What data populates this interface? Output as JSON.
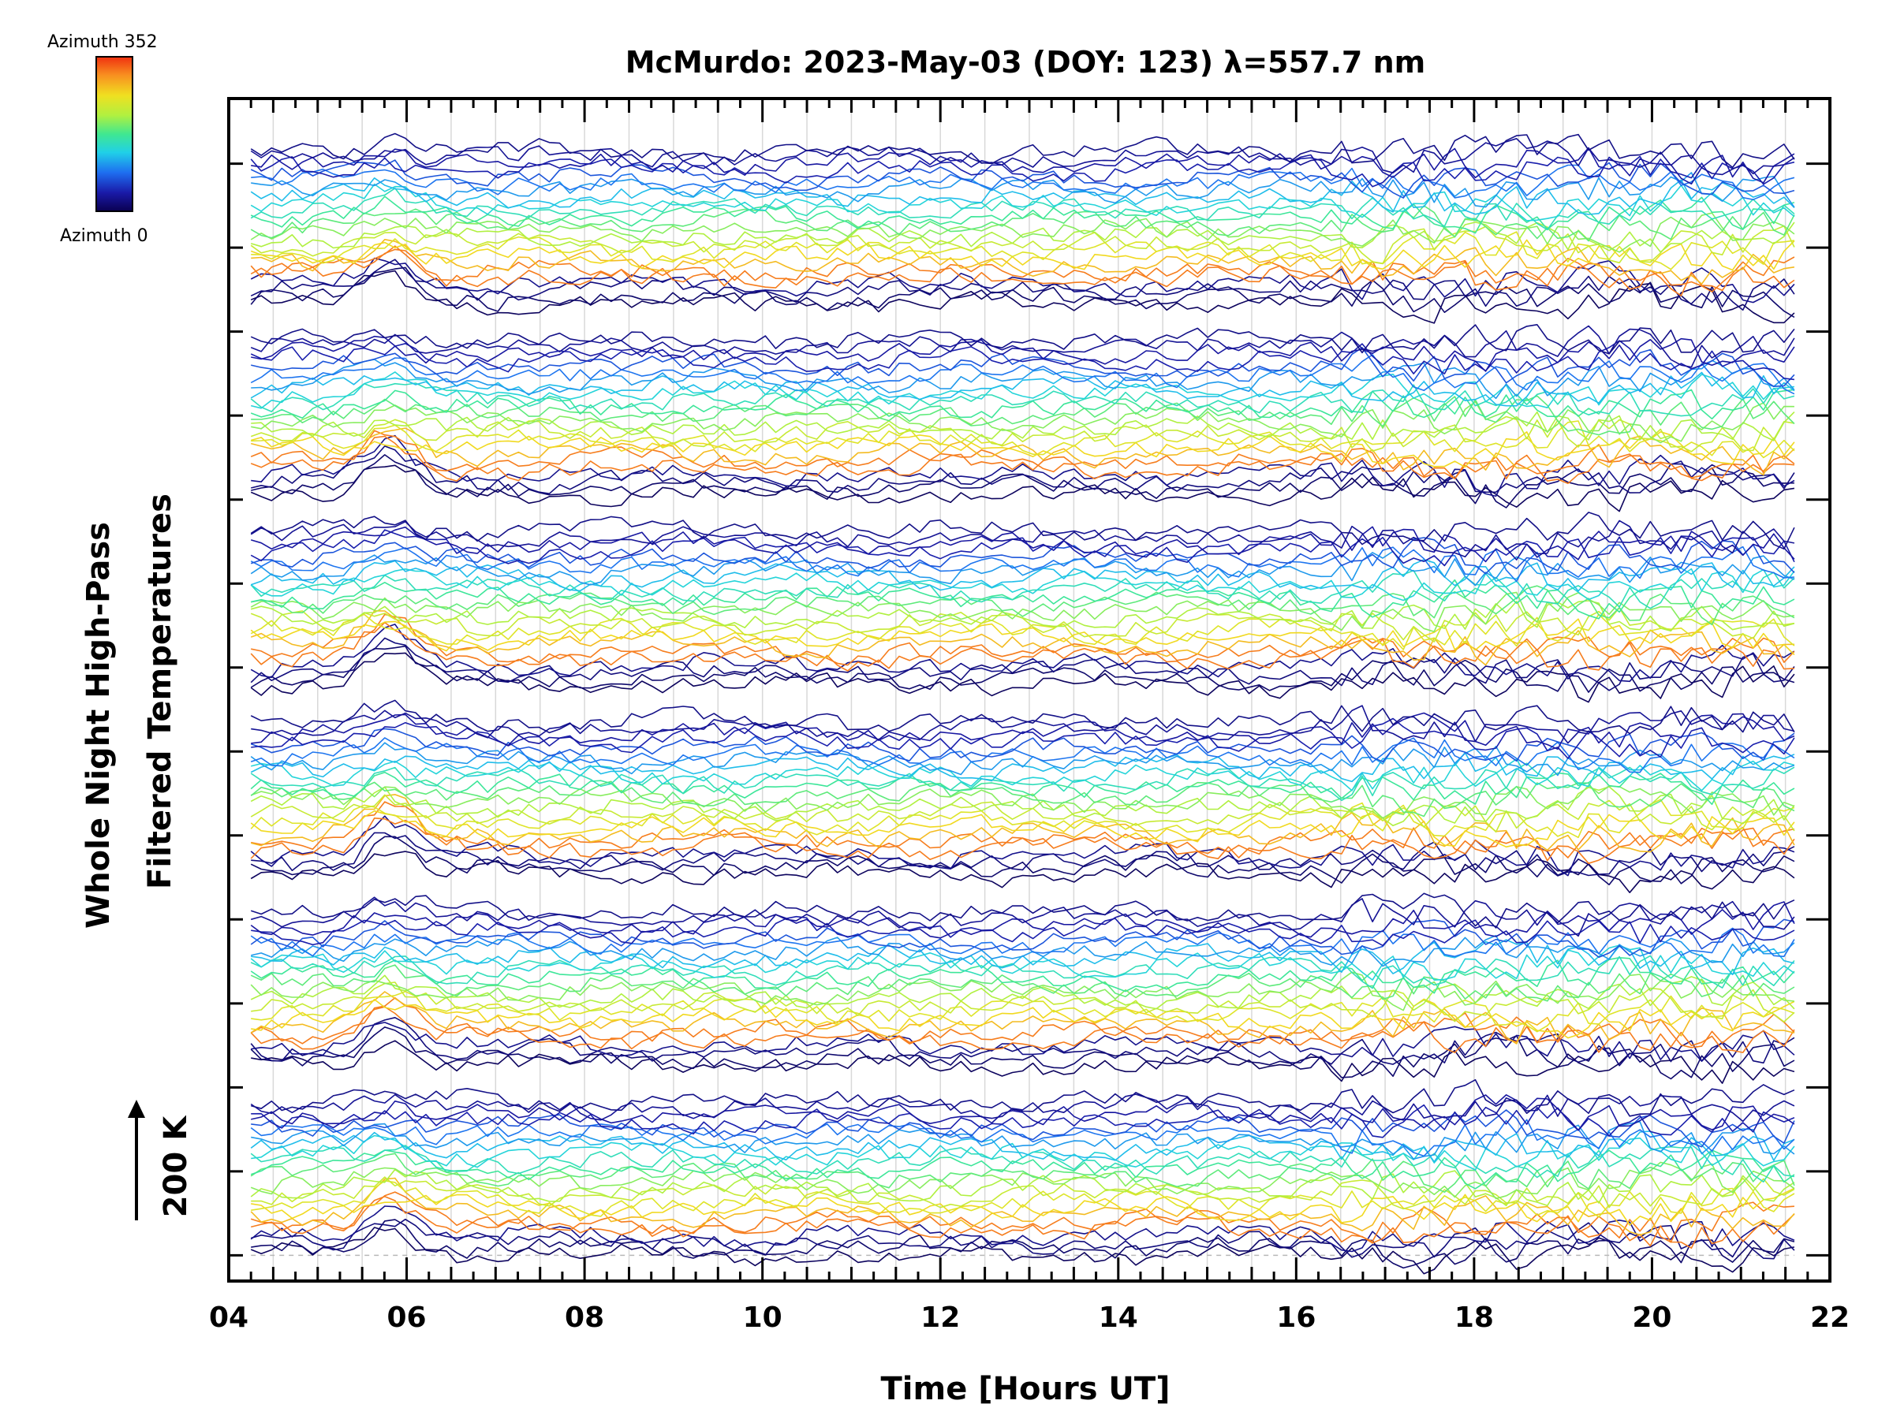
{
  "chart_data": {
    "type": "line",
    "title": "McMurdo: 2023-May-03 (DOY: 123) λ=557.7 nm",
    "xlabel": "Time [Hours UT]",
    "ylabel_line1": "Whole Night High-Pass",
    "ylabel_line2": "Filtered Temperatures",
    "scale_label": "200 K",
    "xlim": [
      4,
      22
    ],
    "xticks": [
      "04",
      "06",
      "08",
      "10",
      "12",
      "14",
      "16",
      "18",
      "20",
      "22"
    ],
    "x_start": 4.25,
    "x_end": 21.6,
    "colorbar": {
      "top_label": "Azimuth 352",
      "bottom_label": "Azimuth 0",
      "colors": [
        "#0a0050",
        "#1a1aa8",
        "#1e6ef0",
        "#20d0e8",
        "#40e890",
        "#b0f040",
        "#f0e020",
        "#f89020",
        "#f03010"
      ]
    },
    "groups": [
      {
        "base": 0,
        "azimuths": 24
      },
      {
        "base": 1,
        "azimuths": 24
      },
      {
        "base": 2,
        "azimuths": 24
      },
      {
        "base": 3,
        "azimuths": 24
      },
      {
        "base": 4,
        "azimuths": 24
      },
      {
        "base": 5,
        "azimuths": 24
      }
    ],
    "group_step": 3,
    "ylim": [
      -0.3,
      13.5
    ],
    "grid": "vertical-light",
    "reference_line": 0
  }
}
